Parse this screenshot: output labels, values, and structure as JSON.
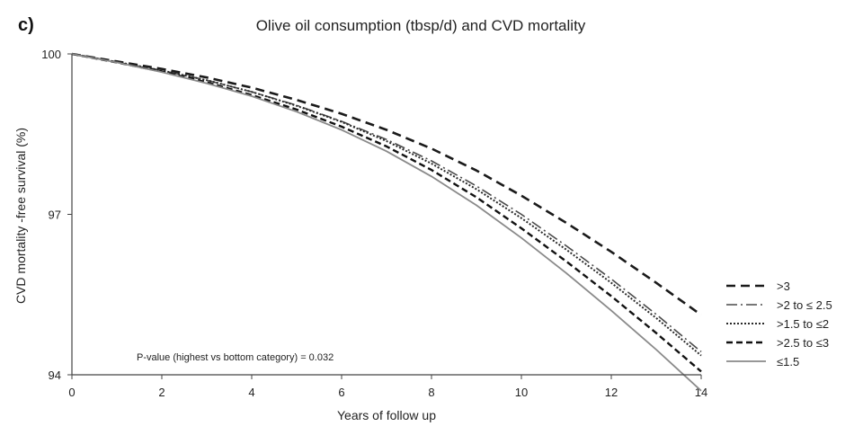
{
  "panel_label": "c)",
  "chart_data": {
    "type": "line",
    "title": "Olive oil consumption  (tbsp/d) and CVD mortality",
    "xlabel": "Years of follow up",
    "ylabel": "CVD mortality -free survival  (%)",
    "xlim": [
      0,
      14
    ],
    "ylim": [
      94,
      100
    ],
    "xticks": [
      0,
      2,
      4,
      6,
      8,
      10,
      12,
      14
    ],
    "yticks": [
      94,
      97,
      100
    ],
    "grid": false,
    "legend_position": "right",
    "annotation": "P-value (highest vs bottom category) = 0.032",
    "x": [
      0,
      1,
      2,
      3,
      4,
      5,
      6,
      7,
      8,
      9,
      10,
      11,
      12,
      13,
      14
    ],
    "series": [
      {
        "name": ">3",
        "dash": "dashed",
        "color": "#1a1a1a",
        "values": [
          100,
          99.86,
          99.72,
          99.56,
          99.37,
          99.14,
          98.88,
          98.58,
          98.23,
          97.82,
          97.35,
          96.84,
          96.3,
          95.72,
          95.12
        ]
      },
      {
        "name": ">2 to ≤ 2.5",
        "dash": "dashdot",
        "color": "#4a4a4a",
        "values": [
          100,
          99.85,
          99.69,
          99.51,
          99.29,
          99.04,
          98.74,
          98.4,
          98.0,
          97.53,
          97.0,
          96.41,
          95.79,
          95.13,
          94.43
        ]
      },
      {
        "name": ">1.5 to ≤2",
        "dash": "dotted",
        "color": "#2a2a2a",
        "values": [
          100,
          99.85,
          99.69,
          99.51,
          99.29,
          99.03,
          98.73,
          98.37,
          97.95,
          97.47,
          96.93,
          96.34,
          95.72,
          95.06,
          94.36
        ]
      },
      {
        "name": ">2.5 to ≤3",
        "dash": "dashed-heavy",
        "color": "#111111",
        "values": [
          100,
          99.84,
          99.67,
          99.47,
          99.23,
          98.96,
          98.64,
          98.27,
          97.83,
          97.32,
          96.74,
          96.12,
          95.47,
          94.78,
          94.06
        ]
      },
      {
        "name": "≤1.5",
        "dash": "solid",
        "color": "#8a8a8a",
        "values": [
          100,
          99.84,
          99.66,
          99.45,
          99.21,
          98.92,
          98.58,
          98.18,
          97.71,
          97.17,
          96.56,
          95.9,
          95.2,
          94.47,
          93.7
        ]
      }
    ]
  }
}
